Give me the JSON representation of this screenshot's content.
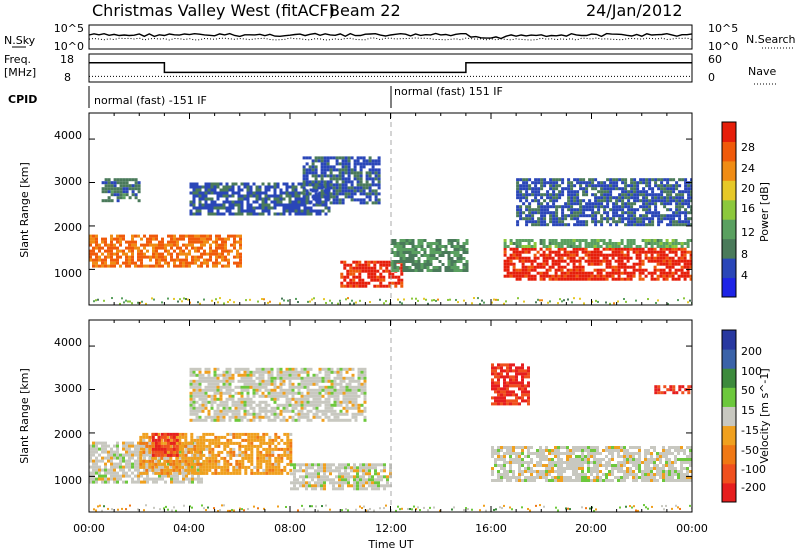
{
  "header": {
    "station": "Christmas Valley West (fitACF)",
    "beam": "Beam 22",
    "date": "24/Jan/2012"
  },
  "noise_panel": {
    "left_label": "N.Sky",
    "left_ticks": [
      "10^5",
      "10^0"
    ],
    "right_label": "N.Search",
    "right_ticks": [
      "10^5",
      "10^0"
    ]
  },
  "freq_panel": {
    "left_label_1": "Freq.",
    "left_label_2": "[MHz]",
    "left_ticks": [
      "18",
      "8"
    ],
    "right_label": "Nave",
    "right_ticks": [
      "60",
      "0"
    ],
    "freq_series_mhz": [
      [
        0,
        15.4
      ],
      [
        3,
        15.4
      ],
      [
        3,
        11.0
      ],
      [
        15,
        11.0
      ],
      [
        15,
        15.4
      ],
      [
        24,
        15.4
      ]
    ],
    "nave_series": [
      [
        0,
        14
      ],
      [
        24,
        14
      ]
    ]
  },
  "cpid_panel": {
    "label": "CPID",
    "segments": [
      {
        "start_hour": 0,
        "text": "normal (fast) -151 IF"
      },
      {
        "start_hour": 12,
        "text": "normal (fast) 151 IF"
      }
    ]
  },
  "x_axis": {
    "label": "Time UT",
    "ticks": [
      "00:00",
      "04:00",
      "08:00",
      "12:00",
      "16:00",
      "20:00",
      "00:00"
    ]
  },
  "power_panel": {
    "ylabel": "Slant Range [km]",
    "yticks": [
      "4000",
      "3000",
      "2000",
      "1000"
    ],
    "colorbar_label": "Power [dB]",
    "colorbar_ticks": [
      "28",
      "24",
      "20",
      "16",
      "12",
      "8",
      "4"
    ],
    "colors": [
      "#1e24e6",
      "#2a46b8",
      "#4a7a5a",
      "#5aa060",
      "#8cc83c",
      "#e6c828",
      "#f08c14",
      "#f05a0a",
      "#e61e0a"
    ]
  },
  "velocity_panel": {
    "ylabel": "Slant Range [km]",
    "yticks": [
      "4000",
      "3000",
      "2000",
      "1000"
    ],
    "colorbar_label": "Velocity [m s^-1]",
    "colorbar_ticks": [
      "200",
      "100",
      "50",
      "15",
      "-15",
      "-50",
      "-100",
      "-200"
    ],
    "colors": [
      "#2838a0",
      "#3a62a8",
      "#3c8a3c",
      "#6cc83c",
      "#c8c8c0",
      "#f0a01e",
      "#f07814",
      "#f0501e",
      "#e61e1e"
    ]
  },
  "chart_data": {
    "type": "heatmap",
    "title": "Christmas Valley West (fitACF)  Beam 22  24/Jan/2012",
    "xlabel": "Time UT",
    "xlim_hours": [
      0,
      24
    ],
    "ylabel": "Slant Range [km]",
    "ylim_km": [
      180,
      4600
    ],
    "panels": [
      {
        "name": "Power",
        "unit": "dB",
        "scale": [
          0,
          30
        ],
        "echo_regions": [
          {
            "t_start": 0.0,
            "t_end": 6.0,
            "range_min_km": 1100,
            "range_max_km": 1800,
            "value": 24
          },
          {
            "t_start": 0.5,
            "t_end": 2.0,
            "range_min_km": 2600,
            "range_max_km": 3100,
            "value": 8
          },
          {
            "t_start": 4.0,
            "t_end": 9.5,
            "range_min_km": 2300,
            "range_max_km": 3000,
            "value": 6
          },
          {
            "t_start": 8.5,
            "t_end": 11.5,
            "range_min_km": 2500,
            "range_max_km": 3600,
            "value": 6
          },
          {
            "t_start": 10.0,
            "t_end": 12.5,
            "range_min_km": 600,
            "range_max_km": 1200,
            "value": 28
          },
          {
            "t_start": 12.0,
            "t_end": 15.0,
            "range_min_km": 1000,
            "range_max_km": 1700,
            "value": 10
          },
          {
            "t_start": 16.5,
            "t_end": 24.0,
            "range_min_km": 800,
            "range_max_km": 1500,
            "value": 28
          },
          {
            "t_start": 16.5,
            "t_end": 24.0,
            "range_min_km": 1500,
            "range_max_km": 1700,
            "value": 12
          },
          {
            "t_start": 17.0,
            "t_end": 24.0,
            "range_min_km": 2000,
            "range_max_km": 3100,
            "value": 6
          }
        ]
      },
      {
        "name": "Velocity",
        "unit": "m s^-1",
        "scale": [
          -250,
          250
        ],
        "echo_regions": [
          {
            "t_start": 0.0,
            "t_end": 4.5,
            "range_min_km": 900,
            "range_max_km": 1800,
            "value": 0
          },
          {
            "t_start": 2.0,
            "t_end": 8.0,
            "range_min_km": 1100,
            "range_max_km": 2000,
            "value": -60
          },
          {
            "t_start": 2.5,
            "t_end": 3.5,
            "range_min_km": 1500,
            "range_max_km": 2000,
            "value": -200
          },
          {
            "t_start": 8.0,
            "t_end": 12.0,
            "range_min_km": 700,
            "range_max_km": 1300,
            "value": 0
          },
          {
            "t_start": 4.0,
            "t_end": 11.0,
            "range_min_km": 2300,
            "range_max_km": 3500,
            "value": 0
          },
          {
            "t_start": 16.0,
            "t_end": 24.0,
            "range_min_km": 900,
            "range_max_km": 1700,
            "value": 0
          },
          {
            "t_start": 16.0,
            "t_end": 17.5,
            "range_min_km": 2700,
            "range_max_km": 3600,
            "value": -200
          },
          {
            "t_start": 22.5,
            "t_end": 24.0,
            "range_min_km": 2900,
            "range_max_km": 3100,
            "value": -200
          }
        ]
      }
    ],
    "grid": false
  }
}
